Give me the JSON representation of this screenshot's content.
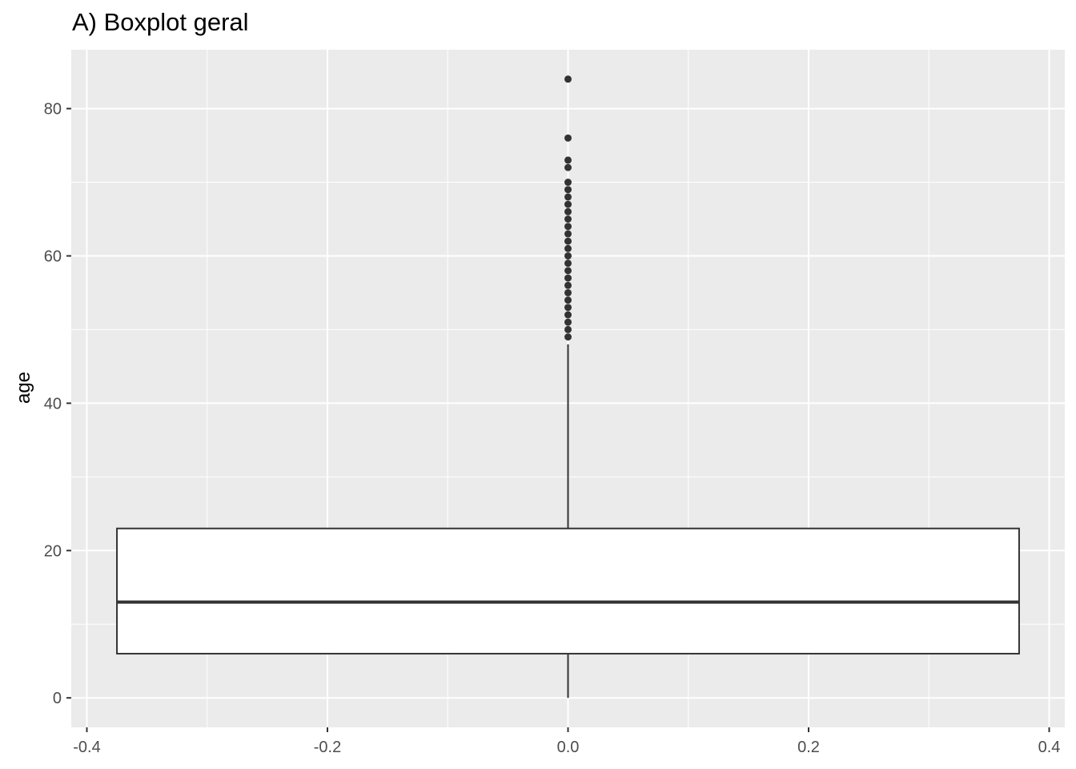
{
  "chart_data": {
    "type": "boxplot",
    "title": "A) Boxplot geral",
    "xlabel": "",
    "ylabel": "age",
    "xlim": [
      -0.4,
      0.4
    ],
    "ylim": [
      -4,
      88
    ],
    "x_ticks": [
      -0.4,
      -0.2,
      0.0,
      0.2,
      0.4
    ],
    "x_tick_labels": [
      "-0.4",
      "-0.2",
      "0.0",
      "0.2",
      "0.4"
    ],
    "y_ticks": [
      0,
      20,
      40,
      60,
      80
    ],
    "y_tick_labels": [
      "0",
      "20",
      "40",
      "60",
      "80"
    ],
    "grid": true,
    "box": {
      "x": 0.0,
      "x_range": [
        -0.375,
        0.375
      ],
      "whisker_low": 0,
      "q1": 6,
      "median": 13,
      "q3": 23,
      "whisker_high": 48,
      "outliers": [
        49,
        50,
        51,
        52,
        53,
        54,
        55,
        56,
        57,
        58,
        59,
        60,
        61,
        62,
        63,
        64,
        65,
        66,
        67,
        68,
        69,
        70,
        72,
        73,
        76,
        84
      ]
    },
    "colors": {
      "panel_background": "#ebebeb",
      "grid_major": "#ffffff",
      "box_fill": "#ffffff",
      "box_line": "#333333",
      "outlier": "#333333",
      "tick_text": "#4d4d4d"
    }
  }
}
